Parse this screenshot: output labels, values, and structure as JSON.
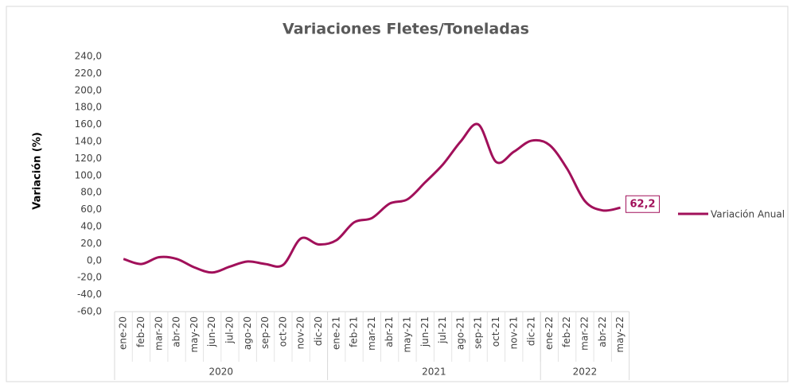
{
  "chart_data": {
    "type": "line",
    "title": "Variaciones Fletes/Toneladas",
    "y_label": "Variación (%)",
    "categories": [
      "ene-20",
      "feb-20",
      "mar-20",
      "abr-20",
      "may-20",
      "jun-20",
      "jul-20",
      "ago-20",
      "sep-20",
      "oct-20",
      "nov-20",
      "dic-20",
      "ene-21",
      "feb-21",
      "mar-21",
      "abr-21",
      "may-21",
      "jun-21",
      "jul-21",
      "ago-21",
      "sep-21",
      "oct-21",
      "nov-21",
      "dic-21",
      "ene-22",
      "feb-22",
      "mar-22",
      "abr-22",
      "may-22"
    ],
    "groups": [
      {
        "label": "2020",
        "count": 12
      },
      {
        "label": "2021",
        "count": 12
      },
      {
        "label": "2022",
        "count": 5
      }
    ],
    "series": [
      {
        "name": "Variación Anual",
        "color": "#a1105a",
        "values": [
          2,
          -4,
          4,
          2,
          -8,
          -14,
          -7,
          -1,
          -4,
          -5,
          26,
          19,
          24,
          45,
          50,
          67,
          72,
          92,
          113,
          140,
          160,
          116,
          128,
          141,
          136,
          108,
          70,
          59,
          62.2
        ],
        "value_labels": {
          "28": "62,2"
        }
      }
    ],
    "ylim": [
      -60,
      240
    ],
    "yticks": [
      {
        "value": -60,
        "label": "-60,0"
      },
      {
        "value": -40,
        "label": "-40,0"
      },
      {
        "value": -20,
        "label": "-20,0"
      },
      {
        "value": 0,
        "label": "0,0"
      },
      {
        "value": 20,
        "label": "20,0"
      },
      {
        "value": 40,
        "label": "40,0"
      },
      {
        "value": 60,
        "label": "60,0"
      },
      {
        "value": 80,
        "label": "80,0"
      },
      {
        "value": 100,
        "label": "100,0"
      },
      {
        "value": 120,
        "label": "120,0"
      },
      {
        "value": 140,
        "label": "140,0"
      },
      {
        "value": 160,
        "label": "160,0"
      },
      {
        "value": 180,
        "label": "180,0"
      },
      {
        "value": 200,
        "label": "200,0"
      },
      {
        "value": 220,
        "label": "220,0"
      },
      {
        "value": 240,
        "label": "240,0"
      }
    ],
    "legend": "right",
    "grid": false
  }
}
